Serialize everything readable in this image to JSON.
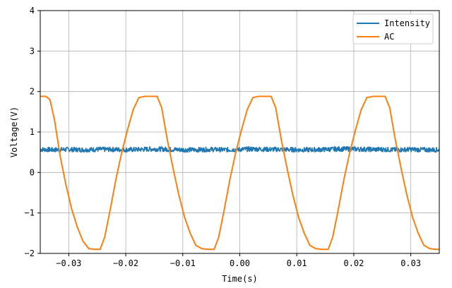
{
  "chart_data": {
    "type": "line",
    "xlabel": "Time(s)",
    "ylabel": "Voltage(V)",
    "xlim": [
      -0.035,
      0.035
    ],
    "ylim": [
      -2,
      4
    ],
    "xticks": [
      -0.03,
      -0.02,
      -0.01,
      0.0,
      0.01,
      0.02,
      0.03
    ],
    "xtick_labels": [
      "−0.03",
      "−0.02",
      "−0.01",
      "0.00",
      "0.01",
      "0.02",
      "0.03"
    ],
    "yticks": [
      -2,
      -1,
      0,
      1,
      2,
      3,
      4
    ],
    "ytick_labels": [
      "−2",
      "−1",
      "0",
      "1",
      "2",
      "3",
      "4"
    ],
    "grid": true,
    "legend_position": "top-right",
    "series": [
      {
        "name": "Intensity",
        "color": "#1f77b4",
        "x": [
          -0.035,
          -0.0325,
          -0.03,
          -0.0275,
          -0.025,
          -0.0225,
          -0.02,
          -0.0175,
          -0.015,
          -0.0125,
          -0.01,
          -0.0075,
          -0.005,
          -0.0025,
          0.0,
          0.0025,
          0.005,
          0.0075,
          0.01,
          0.0125,
          0.015,
          0.0175,
          0.02,
          0.0225,
          0.025,
          0.0275,
          0.03,
          0.0325,
          0.035
        ],
        "y": [
          0.57,
          0.56,
          0.57,
          0.56,
          0.57,
          0.57,
          0.56,
          0.57,
          0.58,
          0.57,
          0.56,
          0.56,
          0.57,
          0.56,
          0.57,
          0.58,
          0.57,
          0.57,
          0.56,
          0.56,
          0.57,
          0.58,
          0.58,
          0.57,
          0.57,
          0.56,
          0.57,
          0.56,
          0.56
        ]
      },
      {
        "name": "AC",
        "color": "#ff7f0e",
        "x": [
          -0.035,
          -0.034,
          -0.0333,
          -0.0325,
          -0.0315,
          -0.0305,
          -0.0295,
          -0.0285,
          -0.0275,
          -0.0265,
          -0.0255,
          -0.0245,
          -0.0237,
          -0.0227,
          -0.0217,
          -0.0207,
          -0.0197,
          -0.0187,
          -0.0177,
          -0.0167,
          -0.0157,
          -0.0145,
          -0.0137,
          -0.0127,
          -0.0117,
          -0.0107,
          -0.0097,
          -0.0087,
          -0.0077,
          -0.0067,
          -0.0057,
          -0.0045,
          -0.0037,
          -0.0027,
          -0.0017,
          -0.0007,
          0.0003,
          0.0013,
          0.0023,
          0.0033,
          0.0043,
          0.0055,
          0.0063,
          0.0073,
          0.0083,
          0.0093,
          0.0103,
          0.0113,
          0.0123,
          0.0133,
          0.0143,
          0.0155,
          0.0163,
          0.0173,
          0.0183,
          0.0193,
          0.0203,
          0.0213,
          0.0223,
          0.0233,
          0.0243,
          0.0255,
          0.0263,
          0.0273,
          0.0283,
          0.0293,
          0.0303,
          0.0313,
          0.0323,
          0.0333,
          0.0343,
          0.035
        ],
        "y": [
          1.88,
          1.88,
          1.8,
          1.3,
          0.4,
          -0.3,
          -0.9,
          -1.35,
          -1.7,
          -1.88,
          -1.9,
          -1.9,
          -1.6,
          -0.9,
          -0.15,
          0.5,
          1.05,
          1.55,
          1.85,
          1.88,
          1.88,
          1.88,
          1.6,
          0.8,
          0.1,
          -0.55,
          -1.1,
          -1.5,
          -1.8,
          -1.88,
          -1.9,
          -1.9,
          -1.6,
          -0.9,
          -0.15,
          0.5,
          1.05,
          1.55,
          1.85,
          1.88,
          1.88,
          1.88,
          1.6,
          0.8,
          0.1,
          -0.55,
          -1.1,
          -1.5,
          -1.8,
          -1.88,
          -1.9,
          -1.9,
          -1.6,
          -0.9,
          -0.15,
          0.5,
          1.05,
          1.55,
          1.85,
          1.88,
          1.88,
          1.88,
          1.6,
          0.8,
          0.1,
          -0.55,
          -1.1,
          -1.5,
          -1.8,
          -1.88,
          -1.9,
          -1.9
        ]
      }
    ]
  }
}
